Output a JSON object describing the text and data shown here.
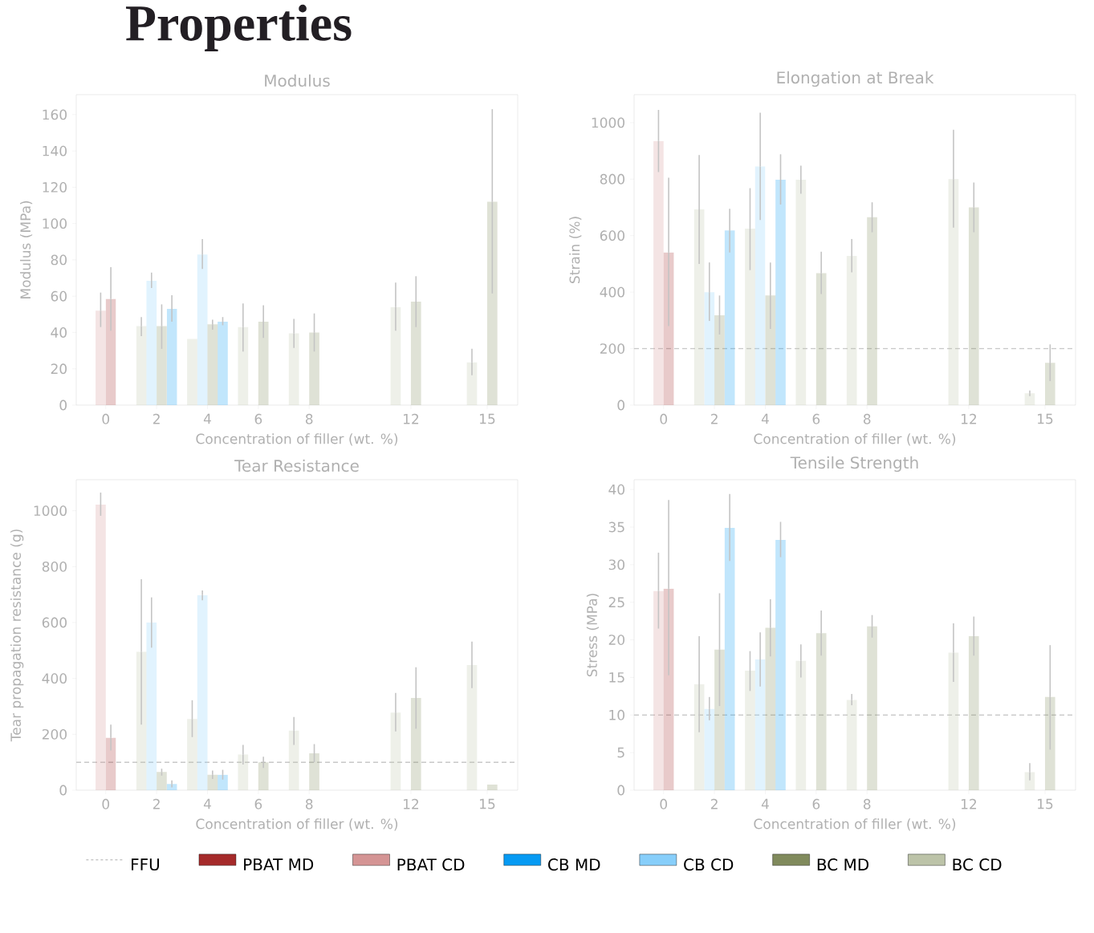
{
  "chart_data": [
    {
      "type": "bar",
      "title": "Modulus",
      "annotations": [
        "Properties"
      ],
      "xlabel": "Concentration of filler (wt. %)",
      "ylabel": "Modulus (MPa)",
      "xlim": [
        -1.16,
        16.2
      ],
      "ylim": [
        0,
        171
      ],
      "xticks": [
        0,
        2,
        4,
        6,
        8,
        12,
        15
      ],
      "yticks": [
        0,
        20,
        40,
        60,
        80,
        100,
        120,
        140,
        160
      ],
      "series": [
        {
          "color": "#a52a2a",
          "x": [
            0
          ],
          "values": [
            58.5
          ],
          "errors": [
            [
              41,
              76
            ]
          ]
        },
        {
          "color": "#d49494",
          "x": [
            0
          ],
          "values": [
            52
          ],
          "errors": [
            [
              43,
              62
            ]
          ]
        },
        {
          "color": "#069af3",
          "x": [
            2,
            4
          ],
          "values": [
            53,
            46
          ],
          "errors": [
            [
              46,
              60.5
            ],
            [
              44,
              48.5
            ]
          ]
        },
        {
          "color": "#87cefa",
          "x": [
            2,
            4
          ],
          "values": [
            68.5,
            83
          ],
          "errors": [
            [
              64.5,
              73
            ],
            [
              75,
              91.5
            ]
          ]
        },
        {
          "color": "#808a5c",
          "x": [
            2,
            4,
            6,
            8,
            12,
            15
          ],
          "values": [
            43.5,
            44.5,
            46,
            40,
            57,
            112
          ],
          "errors": [
            [
              31,
              55.5
            ],
            [
              41.5,
              47
            ],
            [
              37,
              55
            ],
            [
              29.5,
              50.5
            ],
            [
              43,
              71
            ],
            [
              61.5,
              163
            ]
          ]
        },
        {
          "color": "#bcc3a8",
          "x": [
            2,
            4,
            6,
            8,
            12,
            15
          ],
          "values": [
            43.5,
            36.5,
            43,
            39.5,
            54,
            23.5
          ],
          "errors": [
            [
              38,
              48.5
            ],
            null,
            [
              29.5,
              56
            ],
            [
              31.5,
              47.5
            ],
            [
              41,
              67.5
            ],
            [
              16.5,
              31
            ]
          ]
        }
      ]
    },
    {
      "type": "bar",
      "title": "Elongation at Break",
      "xlabel": "Concentration of filler (wt. %)",
      "ylabel": "Strain (%)",
      "xlim": [
        -1.16,
        16.2
      ],
      "ylim": [
        0,
        1099
      ],
      "xticks": [
        0,
        2,
        4,
        6,
        8,
        12,
        15
      ],
      "yticks": [
        0,
        200,
        400,
        600,
        800,
        1000
      ],
      "ref_lines": [
        {
          "axis": "y",
          "value": 200
        }
      ],
      "series": [
        {
          "color": "#a52a2a",
          "x": [
            0
          ],
          "values": [
            540
          ],
          "errors": [
            [
              280,
              805
            ]
          ]
        },
        {
          "color": "#d49494",
          "x": [
            0
          ],
          "values": [
            935
          ],
          "errors": [
            [
              825,
              1045
            ]
          ]
        },
        {
          "color": "#069af3",
          "x": [
            2,
            4
          ],
          "values": [
            618,
            798
          ],
          "errors": [
            [
              540,
              695
            ],
            [
              710,
              888
            ]
          ]
        },
        {
          "color": "#87cefa",
          "x": [
            2,
            4
          ],
          "values": [
            400,
            845
          ],
          "errors": [
            [
              298,
              505
            ],
            [
              655,
              1035
            ]
          ]
        },
        {
          "color": "#808a5c",
          "x": [
            2,
            4,
            6,
            8,
            12,
            15
          ],
          "values": [
            318,
            388,
            467,
            665,
            700,
            150
          ],
          "errors": [
            [
              250,
              388
            ],
            [
              270,
              505
            ],
            [
              393,
              543
            ],
            [
              612,
              718
            ],
            [
              612,
              788
            ],
            [
              85,
              215
            ]
          ]
        },
        {
          "color": "#bcc3a8",
          "x": [
            2,
            4,
            6,
            8,
            12,
            15
          ],
          "values": [
            693,
            625,
            798,
            528,
            800,
            42
          ],
          "errors": [
            [
              500,
              885
            ],
            [
              478,
              768
            ],
            [
              748,
              848
            ],
            [
              470,
              588
            ],
            [
              628,
              975
            ],
            [
              32,
              52
            ]
          ]
        }
      ]
    },
    {
      "type": "bar",
      "title": "Tear Resistance",
      "xlabel": "Concentration of filler (wt. %)",
      "ylabel": "Tear propagation resistance (g)",
      "xlim": [
        -1.16,
        16.2
      ],
      "ylim": [
        0,
        1111
      ],
      "xticks": [
        0,
        2,
        4,
        6,
        8,
        12,
        15
      ],
      "yticks": [
        0,
        200,
        400,
        600,
        800,
        1000
      ],
      "ref_lines": [
        {
          "axis": "y",
          "value": 100
        }
      ],
      "series": [
        {
          "color": "#a52a2a",
          "x": [
            0
          ],
          "values": [
            188
          ],
          "errors": [
            [
              142,
              235
            ]
          ]
        },
        {
          "color": "#d49494",
          "x": [
            0
          ],
          "values": [
            1022
          ],
          "errors": [
            [
              982,
              1065
            ]
          ]
        },
        {
          "color": "#069af3",
          "x": [
            2,
            4
          ],
          "values": [
            22,
            55
          ],
          "errors": [
            [
              10,
              35
            ],
            [
              38,
              73
            ]
          ]
        },
        {
          "color": "#87cefa",
          "x": [
            2,
            4
          ],
          "values": [
            600,
            698
          ],
          "errors": [
            [
              510,
              690
            ],
            [
              680,
              715
            ]
          ]
        },
        {
          "color": "#808a5c",
          "x": [
            2,
            4,
            6,
            8,
            12,
            15
          ],
          "values": [
            65,
            55,
            100,
            132,
            330,
            20
          ],
          "errors": [
            [
              52,
              77
            ],
            [
              40,
              70
            ],
            [
              80,
              120
            ],
            [
              100,
              165
            ],
            [
              220,
              440
            ],
            null
          ]
        },
        {
          "color": "#bcc3a8",
          "x": [
            2,
            4,
            6,
            8,
            12,
            15
          ],
          "values": [
            495,
            255,
            128,
            213,
            278,
            448
          ],
          "errors": [
            [
              235,
              755
            ],
            [
              190,
              322
            ],
            [
              92,
              162
            ],
            [
              162,
              262
            ],
            [
              210,
              348
            ],
            [
              365,
              532
            ]
          ]
        }
      ]
    },
    {
      "type": "bar",
      "title": "Tensile Strength",
      "xlabel": "Concentration of filler (wt. %)",
      "ylabel": "Stress (MPa)",
      "xlim": [
        -1.16,
        16.2
      ],
      "ylim": [
        0,
        41.3
      ],
      "xticks": [
        0,
        2,
        4,
        6,
        8,
        12,
        15
      ],
      "yticks": [
        0,
        5,
        10,
        15,
        20,
        25,
        30,
        35,
        40
      ],
      "legend": "bottom",
      "ref_lines": [
        {
          "axis": "y",
          "value": 10,
          "label": "FFU"
        }
      ],
      "series": [
        {
          "name": "PBAT MD",
          "color": "#a52a2a",
          "x": [
            0
          ],
          "values": [
            26.8
          ],
          "errors": [
            [
              15.3,
              38.6
            ]
          ]
        },
        {
          "name": "PBAT CD",
          "color": "#d49494",
          "x": [
            0
          ],
          "values": [
            26.5
          ],
          "errors": [
            [
              21.5,
              31.6
            ]
          ]
        },
        {
          "name": "CB MD",
          "color": "#069af3",
          "x": [
            2,
            4
          ],
          "values": [
            34.9,
            33.3
          ],
          "errors": [
            [
              30.5,
              39.4
            ],
            [
              31,
              35.7
            ]
          ]
        },
        {
          "name": "CB CD",
          "color": "#87cefa",
          "x": [
            2,
            4
          ],
          "values": [
            10.8,
            17.4
          ],
          "errors": [
            [
              9.3,
              12.4
            ],
            [
              13.8,
              21
            ]
          ]
        },
        {
          "name": "BC MD",
          "color": "#808a5c",
          "x": [
            2,
            4,
            6,
            8,
            12,
            15
          ],
          "values": [
            18.7,
            21.6,
            20.9,
            21.8,
            20.5,
            12.4
          ],
          "errors": [
            [
              11.2,
              26.2
            ],
            [
              17.8,
              25.4
            ],
            [
              17.9,
              23.9
            ],
            [
              20.3,
              23.3
            ],
            [
              17.9,
              23.1
            ],
            [
              5.4,
              19.3
            ]
          ]
        },
        {
          "name": "BC CD",
          "color": "#bcc3a8",
          "x": [
            2,
            4,
            6,
            8,
            12,
            15
          ],
          "values": [
            14.1,
            15.9,
            17.2,
            12,
            18.3,
            2.4
          ],
          "errors": [
            [
              7.7,
              20.5
            ],
            [
              13.2,
              18.5
            ],
            [
              15,
              19.4
            ],
            [
              11.3,
              12.8
            ],
            [
              14.4,
              22.2
            ],
            [
              1.3,
              3.6
            ]
          ]
        }
      ]
    }
  ]
}
